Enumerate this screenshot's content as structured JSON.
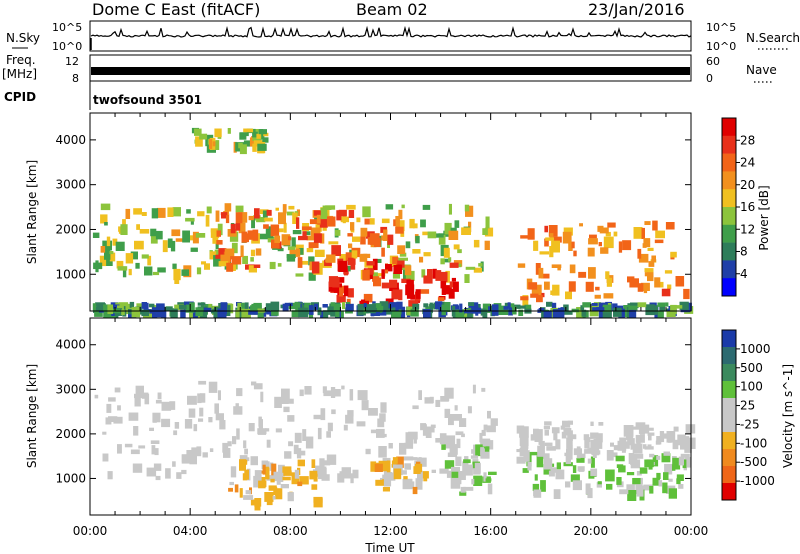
{
  "header": {
    "title": "Dome C East (fitACF)",
    "beam": "Beam 02",
    "date": "23/Jan/2016"
  },
  "panels": {
    "nsky_label": "N.Sky",
    "nsky_ticks": [
      "10^5",
      "10^0"
    ],
    "nsearch_label": "N.Search",
    "nsearch_ticks": [
      "10^5",
      "10^0"
    ],
    "freq_label_line1": "Freq.",
    "freq_label_line2": "[MHz]",
    "freq_ticks": [
      "12",
      "8"
    ],
    "nave_label": "Nave",
    "nave_ticks": [
      "60",
      "0"
    ],
    "cpid_label": "CPID",
    "cpid_value": "twofsound 3501"
  },
  "colors": {
    "background": "#ffffff",
    "axis": "#000000",
    "power_scale": [
      "#0000ff",
      "#1f3fa8",
      "#2e7d5a",
      "#3f9e4a",
      "#8cc43c",
      "#f0c020",
      "#f2901e",
      "#f26418",
      "#e8301a",
      "#e00000"
    ],
    "velocity_scale": [
      "#1a3aa8",
      "#2c6a70",
      "#3b8a5e",
      "#5fc03a",
      "#c8c8c8",
      "#c8c8c8",
      "#f0b020",
      "#f08a1e",
      "#ef6618",
      "#e00000"
    ]
  },
  "chart_data": [
    {
      "type": "heatmap",
      "title": "",
      "xlabel": "Time UT",
      "ylabel": "Slant Range [km]",
      "x_ticks": [
        "00:00",
        "04:00",
        "08:00",
        "12:00",
        "16:00",
        "20:00",
        "00:00"
      ],
      "y_ticks": [
        "1000",
        "2000",
        "3000",
        "4000"
      ],
      "xlim_hours": [
        0,
        24
      ],
      "ylim_km": [
        180,
        4600
      ],
      "colorbar": {
        "label": "Power [dB]",
        "ticks": [
          "4",
          "8",
          "12",
          "16",
          "20",
          "24",
          "28"
        ],
        "range": [
          0,
          30
        ]
      },
      "echo_regions": [
        {
          "t0": 0.1,
          "t1": 16.0,
          "r0": 1000,
          "r1": 2600,
          "value": 14
        },
        {
          "t0": 5.0,
          "t1": 12.5,
          "r0": 1200,
          "r1": 2500,
          "value": 22
        },
        {
          "t0": 9.5,
          "t1": 14.5,
          "r0": 400,
          "r1": 1400,
          "value": 28
        },
        {
          "t0": 17.0,
          "t1": 23.8,
          "r0": 500,
          "r1": 2200,
          "value": 20
        },
        {
          "t0": 0.1,
          "t1": 23.8,
          "r0": 180,
          "r1": 400,
          "value": 8
        },
        {
          "t0": 4.0,
          "t1": 7.0,
          "r0": 3900,
          "r1": 4300,
          "value": 14
        }
      ]
    },
    {
      "type": "heatmap",
      "title": "",
      "xlabel": "Time UT",
      "ylabel": "Slant Range [km]",
      "x_ticks": [
        "00:00",
        "04:00",
        "08:00",
        "12:00",
        "16:00",
        "20:00",
        "00:00"
      ],
      "y_ticks": [
        "1000",
        "2000",
        "3000",
        "4000"
      ],
      "xlim_hours": [
        0,
        24
      ],
      "ylim_km": [
        180,
        4600
      ],
      "colorbar": {
        "label": "Velocity [m s^-1]",
        "ticks": [
          "1000",
          "500",
          "100",
          "25",
          "-25",
          "-100",
          "-500",
          "-1000"
        ],
        "range": [
          -1000,
          1000
        ]
      },
      "echo_regions": [
        {
          "t0": 0.1,
          "t1": 16.0,
          "r0": 1000,
          "r1": 3200,
          "value": 0
        },
        {
          "t0": 5.5,
          "t1": 9.0,
          "r0": 500,
          "r1": 1500,
          "value": -300
        },
        {
          "t0": 11.0,
          "t1": 13.5,
          "r0": 800,
          "r1": 1500,
          "value": -300
        },
        {
          "t0": 14.0,
          "t1": 16.0,
          "r0": 700,
          "r1": 1800,
          "value": 200
        },
        {
          "t0": 17.0,
          "t1": 23.8,
          "r0": 700,
          "r1": 1600,
          "value": 200
        },
        {
          "t0": 17.0,
          "t1": 23.8,
          "r0": 1600,
          "r1": 2300,
          "value": 0
        }
      ]
    }
  ]
}
